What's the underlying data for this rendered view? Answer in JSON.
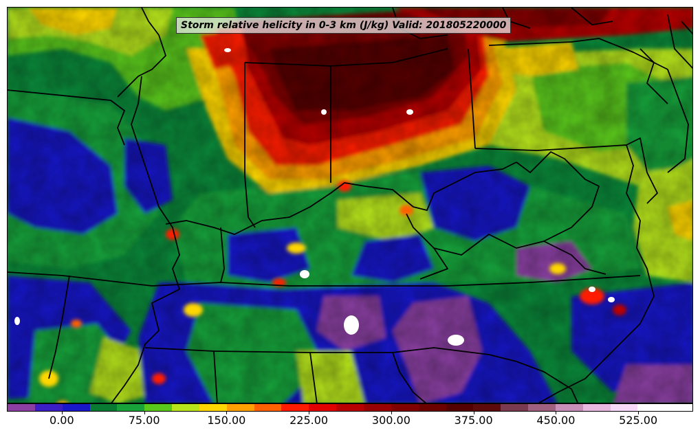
{
  "title": "Storm relative helicity in 0-3 km (J/kg) Valid: 201805220000",
  "colorbar": {
    "min": -50,
    "max": 575,
    "step": 25,
    "colors": [
      "#8b3fa3",
      "#3b1fc4",
      "#1818c8",
      "#087a32",
      "#18a33a",
      "#5ac81a",
      "#b8e61a",
      "#ffd700",
      "#ffa000",
      "#ff6000",
      "#ff1a00",
      "#e00000",
      "#b80000",
      "#990000",
      "#800000",
      "#6a0000",
      "#550000",
      "#5c0a0a",
      "#7a3b50",
      "#a06080",
      "#c890b8",
      "#e8b8e0",
      "#f8d8f8",
      "#ffffff",
      "#ffffff"
    ],
    "tick_labels": [
      "0.00",
      "75.00",
      "150.00",
      "225.00",
      "300.00",
      "375.00",
      "450.00",
      "525.00"
    ],
    "tick_values": [
      0,
      75,
      150,
      225,
      300,
      375,
      450,
      525
    ]
  },
  "map": {
    "region": "Eastern United States",
    "field": "storm relative helicity 0-3 km",
    "boundaries": "state",
    "background_color": "#0a8a3a"
  }
}
